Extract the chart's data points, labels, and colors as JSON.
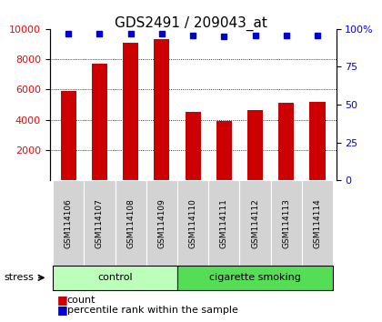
{
  "title": "GDS2491 / 209043_at",
  "samples": [
    "GSM114106",
    "GSM114107",
    "GSM114108",
    "GSM114109",
    "GSM114110",
    "GSM114111",
    "GSM114112",
    "GSM114113",
    "GSM114114"
  ],
  "counts": [
    5900,
    7700,
    9100,
    9350,
    4550,
    3950,
    4650,
    5100,
    5200
  ],
  "percentiles": [
    97,
    97,
    97,
    97,
    96,
    95,
    96,
    96,
    96
  ],
  "groups": [
    {
      "label": "control",
      "start": 0,
      "end": 4,
      "color": "#bbffbb"
    },
    {
      "label": "cigarette smoking",
      "start": 4,
      "end": 9,
      "color": "#55dd55"
    }
  ],
  "bar_color": "#cc0000",
  "dot_color": "#0000cc",
  "ylim_left": [
    0,
    10000
  ],
  "ylim_right": [
    0,
    100
  ],
  "yticks_left": [
    2000,
    4000,
    6000,
    8000,
    10000
  ],
  "yticks_right": [
    0,
    25,
    50,
    75,
    100
  ],
  "stress_label": "stress",
  "legend_count": "count",
  "legend_pct": "percentile rank within the sample"
}
